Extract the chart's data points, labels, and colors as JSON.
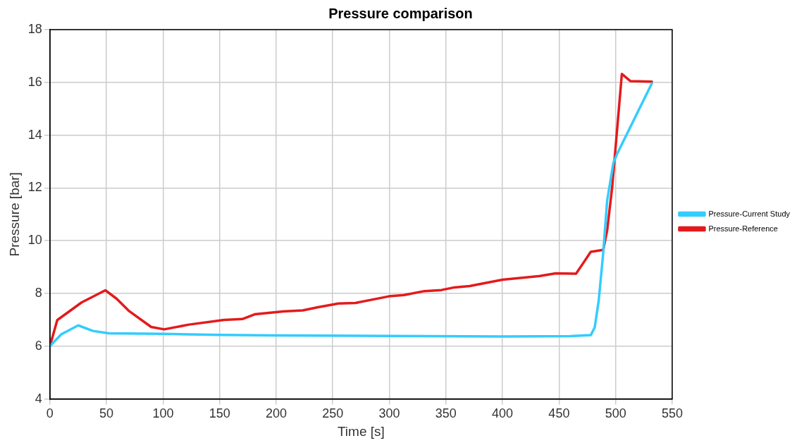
{
  "chart_data": {
    "type": "line",
    "title": "Pressure comparison",
    "xlabel": "Time [s]",
    "ylabel": "Pressure [bar]",
    "xlim": [
      0,
      550
    ],
    "xticks": [
      0,
      50,
      100,
      150,
      200,
      250,
      300,
      350,
      400,
      450,
      500,
      550
    ],
    "ylim": [
      4,
      18
    ],
    "yticks": [
      4,
      6,
      8,
      10,
      12,
      14,
      16,
      18
    ],
    "grid": true,
    "legend": "right",
    "marker": "none",
    "line_style": "solid",
    "series": [
      {
        "name": "Pressure-Current Study",
        "color": "#33ccff",
        "x": [
          0,
          10,
          25,
          38,
          52,
          100,
          150,
          200,
          300,
          400,
          460,
          478,
          481.5,
          485,
          489,
          492.5,
          498,
          501.5,
          532
        ],
        "values": [
          6.0,
          6.45,
          6.79,
          6.58,
          6.49,
          6.47,
          6.43,
          6.41,
          6.39,
          6.37,
          6.38,
          6.42,
          6.71,
          7.71,
          9.52,
          11.51,
          12.95,
          13.31,
          15.96
        ]
      },
      {
        "name": "Pressure-Reference",
        "color": "#e31a1c",
        "x": [
          0,
          6.5,
          28,
          49,
          59,
          69.5,
          89.5,
          101,
          123,
          154,
          170,
          181,
          206,
          223.5,
          237,
          255,
          270,
          299.5,
          313,
          331,
          346,
          357.5,
          371,
          400,
          433,
          447,
          465,
          471.5,
          478,
          489,
          492.5,
          497,
          505.5,
          513,
          532
        ],
        "values": [
          6.0,
          6.99,
          7.66,
          8.12,
          7.8,
          7.35,
          6.73,
          6.64,
          6.82,
          7.0,
          7.03,
          7.21,
          7.32,
          7.36,
          7.48,
          7.62,
          7.64,
          7.89,
          7.94,
          8.09,
          8.13,
          8.23,
          8.28,
          8.52,
          8.66,
          8.76,
          8.75,
          9.16,
          9.58,
          9.65,
          10.38,
          12.05,
          16.32,
          16.05,
          16.03
        ]
      }
    ]
  }
}
